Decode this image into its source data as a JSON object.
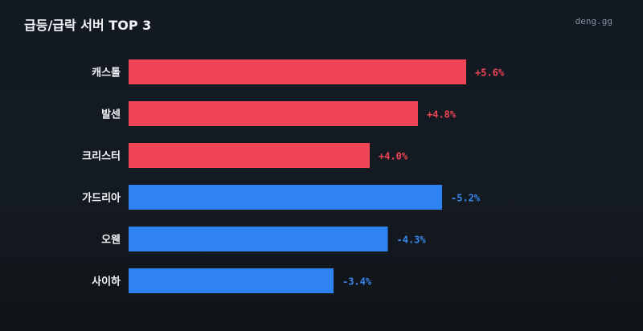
{
  "header": {
    "title": "급등/급락 서버 TOP 3",
    "brand": "deng.gg"
  },
  "colors": {
    "up": "#f04557",
    "down": "#2f82f2",
    "up_text": "#f04557",
    "down_text": "#3b86ee"
  },
  "chart_data": {
    "type": "bar",
    "orientation": "horizontal",
    "title": "급등/급락 서버 TOP 3",
    "categories": [
      "캐스톨",
      "발센",
      "크리스터",
      "가드리아",
      "오웬",
      "사이하"
    ],
    "values": [
      5.6,
      4.8,
      4.0,
      -5.2,
      -4.3,
      -3.4
    ],
    "value_labels": [
      "+5.6%",
      "+4.8%",
      "+4.0%",
      "-5.2%",
      "-4.3%",
      "-3.4%"
    ],
    "unit": "%",
    "bar_length_basis": "absolute value",
    "series": [
      {
        "values": [
          5.6,
          4.8,
          4.0,
          null,
          null,
          null
        ],
        "color": "up"
      },
      {
        "values": [
          null,
          null,
          null,
          -5.2,
          -4.3,
          -3.4
        ],
        "color": "down"
      }
    ],
    "grid": false,
    "legend": "none"
  }
}
